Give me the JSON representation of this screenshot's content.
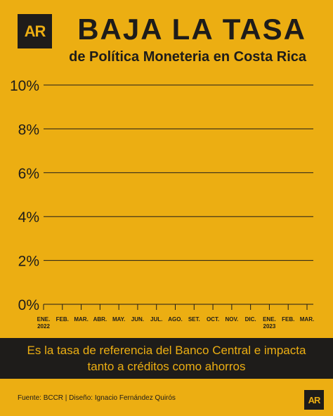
{
  "logo": "AR",
  "title": "BAJA LA TASA",
  "subtitle": "de Política Moneteria en Costa Rica",
  "banner_text": "Es la tasa de referencia del Banco Central e impacta tanto a créditos como ahorros",
  "source": "Fuente: BCCR | Diseño: Ignacio Fernández Quirós",
  "colors": {
    "background": "#ECAE12",
    "dark": "#1E1C1A"
  },
  "chart_data": {
    "type": "line",
    "title": "BAJA LA TASA",
    "subtitle": "de Política Moneteria en Costa Rica",
    "xlabel": "",
    "ylabel": "",
    "categories": [
      [
        "ENE.",
        "2022"
      ],
      [
        "FEB."
      ],
      [
        "MAR."
      ],
      [
        "ABR."
      ],
      [
        "MAY."
      ],
      [
        "JUN."
      ],
      [
        "JUL."
      ],
      [
        "AGO."
      ],
      [
        "SET."
      ],
      [
        "OCT."
      ],
      [
        "NOV."
      ],
      [
        "DIC."
      ],
      [
        "ENE.",
        "2023"
      ],
      [
        "FEB."
      ],
      [
        "MAR."
      ]
    ],
    "y_ticks": [
      "0%",
      "2%",
      "4%",
      "6%",
      "8%",
      "10%"
    ],
    "ylim": [
      0,
      10
    ],
    "grid": true,
    "series": []
  }
}
